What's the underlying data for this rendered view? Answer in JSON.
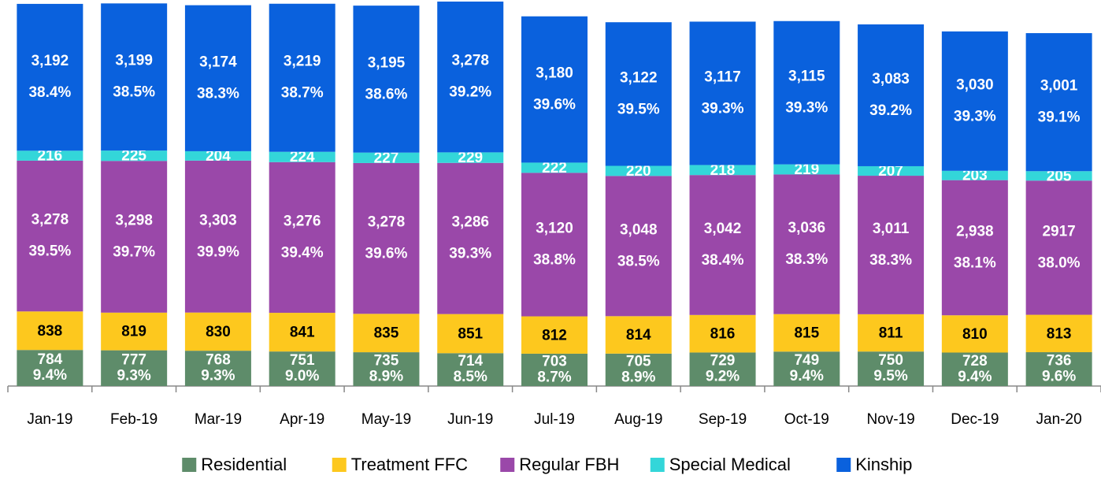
{
  "chart_data": {
    "type": "stacked-bar",
    "categories": [
      "Jan-19",
      "Feb-19",
      "Mar-19",
      "Apr-19",
      "May-19",
      "Jun-19",
      "Jul-19",
      "Aug-19",
      "Sep-19",
      "Oct-19",
      "Nov-19",
      "Dec-19",
      "Jan-20"
    ],
    "series": [
      {
        "name": "Residential",
        "color": "#5e8c6a",
        "values": [
          784,
          777,
          768,
          751,
          735,
          714,
          703,
          705,
          729,
          749,
          750,
          728,
          736
        ],
        "share_labels": [
          "9.4%",
          "9.3%",
          "9.3%",
          "9.0%",
          "8.9%",
          "8.5%",
          "8.7%",
          "8.9%",
          "9.2%",
          "9.4%",
          "9.5%",
          "9.4%",
          "9.6%"
        ]
      },
      {
        "name": "Treatment FFC",
        "color": "#fdc81e",
        "values": [
          838,
          819,
          830,
          841,
          835,
          851,
          812,
          814,
          816,
          815,
          811,
          810,
          813
        ]
      },
      {
        "name": "Regular FBH",
        "color": "#9a48a9",
        "values": [
          3278,
          3298,
          3303,
          3276,
          3278,
          3286,
          3120,
          3048,
          3042,
          3036,
          3011,
          2938,
          2917
        ],
        "value_labels": [
          "3,278",
          "3,298",
          "3,303",
          "3,276",
          "3,278",
          "3,286",
          "3,120",
          "3,048",
          "3,042",
          "3,036",
          "3,011",
          "2,938",
          "2917"
        ],
        "share_labels": [
          "39.5%",
          "39.7%",
          "39.9%",
          "39.4%",
          "39.6%",
          "39.3%",
          "38.8%",
          "38.5%",
          "38.4%",
          "38.3%",
          "38.3%",
          "38.1%",
          "38.0%"
        ]
      },
      {
        "name": "Special Medical",
        "color": "#33d6d9",
        "values": [
          216,
          225,
          204,
          224,
          227,
          229,
          222,
          220,
          218,
          219,
          207,
          203,
          205
        ]
      },
      {
        "name": "Kinship",
        "color": "#0a61dd",
        "values": [
          3192,
          3199,
          3174,
          3219,
          3195,
          3278,
          3180,
          3122,
          3117,
          3115,
          3083,
          3030,
          3001
        ],
        "value_labels": [
          "3,192",
          "3,199",
          "3,174",
          "3,219",
          "3,195",
          "3,278",
          "3,180",
          "3,122",
          "3,117",
          "3,115",
          "3,083",
          "3,030",
          "3,001"
        ],
        "share_labels": [
          "38.4%",
          "38.5%",
          "38.3%",
          "38.7%",
          "38.6%",
          "39.2%",
          "39.6%",
          "39.5%",
          "39.3%",
          "39.3%",
          "39.2%",
          "39.3%",
          "39.1%"
        ]
      }
    ],
    "label_colors": [
      "#ffffff",
      "#000000",
      "#ffffff",
      "#ffffff",
      "#ffffff"
    ],
    "legend": "bottom"
  }
}
